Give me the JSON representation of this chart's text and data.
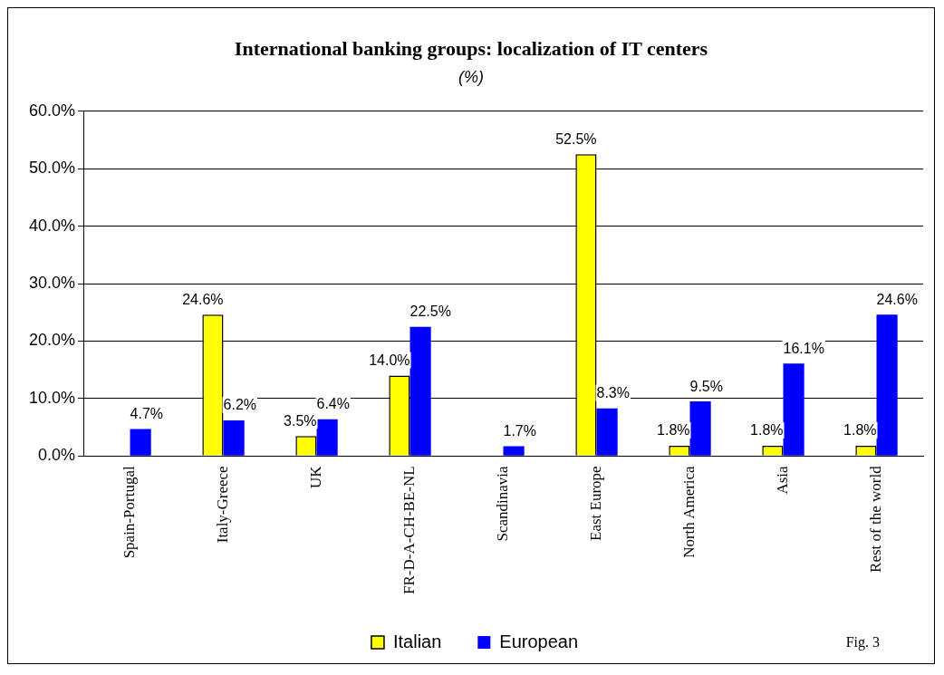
{
  "chart_data": {
    "type": "bar",
    "title": "International banking groups: localization of IT centers",
    "subtitle": "(%)",
    "categories": [
      "Spain-Portugal",
      "Italy-Greece",
      "UK",
      "FR-D-A-CH-BE-NL",
      "Scandinavia",
      "East Europe",
      "North America",
      "Asia",
      "Rest of the world"
    ],
    "series": [
      {
        "name": "Italian",
        "color": "#ffff00",
        "values": [
          null,
          24.6,
          3.5,
          14.0,
          null,
          52.5,
          1.8,
          1.8,
          1.8
        ],
        "value_labels": [
          null,
          "24.6%",
          "3.5%",
          "14.0%",
          null,
          "52.5%",
          "1.8%",
          "1.8%",
          "1.8%"
        ]
      },
      {
        "name": "European",
        "color": "#0000ff",
        "values": [
          4.7,
          6.2,
          6.4,
          22.5,
          1.7,
          8.3,
          9.5,
          16.1,
          24.6
        ],
        "value_labels": [
          "4.7%",
          "6.2%",
          "6.4%",
          "22.5%",
          "1.7%",
          "8.3%",
          "9.5%",
          "16.1%",
          "24.6%"
        ]
      }
    ],
    "ylim": [
      0,
      60
    ],
    "yticks": [
      {
        "value": 0,
        "label": "0.0%"
      },
      {
        "value": 10,
        "label": "10.0%"
      },
      {
        "value": 20,
        "label": "20.0%"
      },
      {
        "value": 30,
        "label": "30.0%"
      },
      {
        "value": 40,
        "label": "40.0%"
      },
      {
        "value": 50,
        "label": "50.0%"
      },
      {
        "value": 60,
        "label": "60.0%"
      }
    ],
    "grid": "y",
    "legend": "bottom",
    "annotations": [
      "Fig. 3"
    ]
  }
}
